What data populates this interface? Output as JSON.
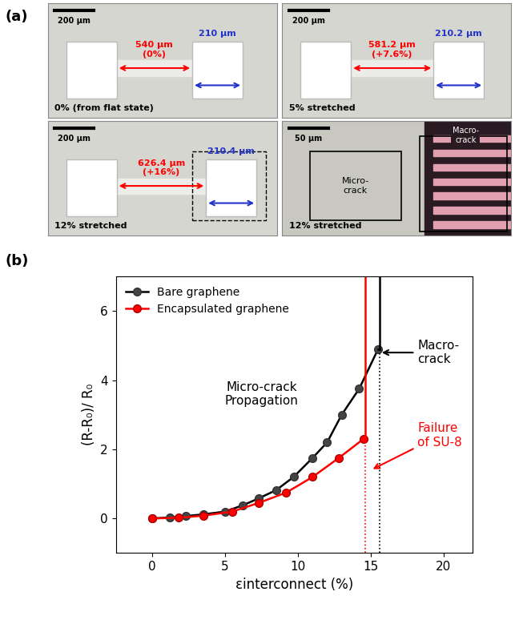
{
  "panel_a": {
    "label": "(a)",
    "images": [
      {
        "scale_bar": "200 µm",
        "red_length": "540 µm\n(0%)",
        "blue_length": "210 µm",
        "caption": "0% (from flat state)"
      },
      {
        "scale_bar": "200 µm",
        "red_length": "581.2 µm\n(+7.6%)",
        "blue_length": "210.2 µm",
        "caption": "5% stretched"
      },
      {
        "scale_bar": "200 µm",
        "red_length": "626.4 µm\n(+16%)",
        "blue_length": "210.4 µm",
        "caption": "12% stretched"
      }
    ],
    "zoom": {
      "scale_bar": "50 µm",
      "micro_crack": "Micro-\ncrack",
      "macro_crack": "Macro-\ncrack",
      "caption": "12% stretched"
    }
  },
  "chart_data": {
    "label": "(b)",
    "type": "line",
    "x_label": "εinterconnect (%)",
    "y_label": "(R-R₀)/ R₀",
    "xlim": [
      -2.5,
      22
    ],
    "ylim": [
      -1,
      7
    ],
    "xticks": [
      0,
      5,
      10,
      15,
      20
    ],
    "yticks": [
      0,
      2,
      4,
      6
    ],
    "legend": "upper left",
    "series": [
      {
        "name": "Bare graphene",
        "color": "black",
        "marker": "o",
        "x": [
          0,
          1.2,
          2.3,
          3.5,
          5.0,
          6.2,
          7.3,
          8.5,
          9.7,
          11.0,
          12.0,
          13.0,
          14.2,
          15.5
        ],
        "values": [
          0,
          0.03,
          0.07,
          0.12,
          0.2,
          0.38,
          0.58,
          0.82,
          1.2,
          1.75,
          2.2,
          3.0,
          3.75,
          4.9
        ],
        "failure_x": 15.6
      },
      {
        "name": "Encapsulated graphene",
        "color": "red",
        "marker": "o",
        "x": [
          0,
          1.8,
          3.5,
          5.5,
          7.3,
          9.2,
          11.0,
          12.8,
          14.5
        ],
        "values": [
          0,
          0.02,
          0.08,
          0.2,
          0.45,
          0.75,
          1.2,
          1.75,
          2.3
        ],
        "failure_x": 14.6
      }
    ],
    "annotations": [
      {
        "text": "Micro-crack\nPropagation",
        "x": 7.5,
        "y": 3.6,
        "color": "black"
      },
      {
        "text": "Macro-\ncrack",
        "x": 18.2,
        "y": 4.8,
        "color": "black",
        "arrow_to": [
          15.6,
          4.8
        ]
      },
      {
        "text": "Failure\nof SU-8",
        "x": 18.2,
        "y": 2.4,
        "color": "red",
        "arrow_to": [
          15.0,
          1.4
        ]
      }
    ]
  }
}
